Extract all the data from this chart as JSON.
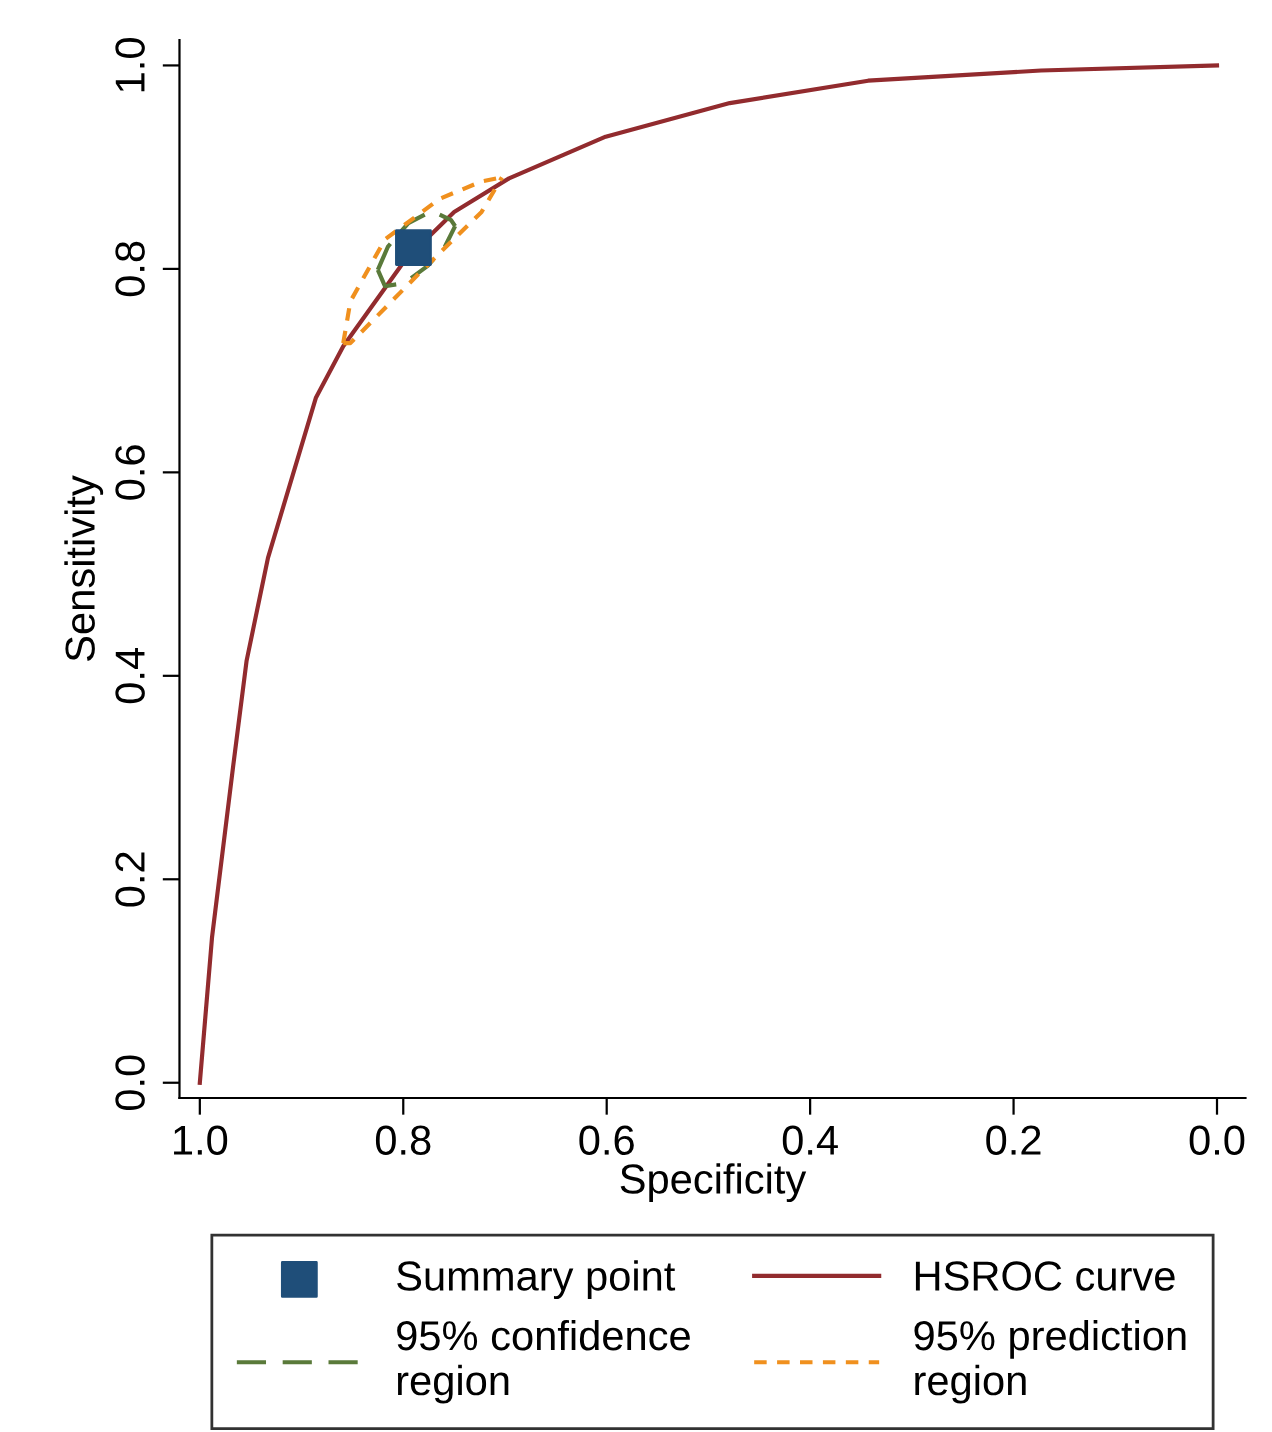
{
  "chart_data": {
    "type": "line",
    "xlabel": "Specificity",
    "ylabel": "Sensitivity",
    "xlim": [
      1.02,
      -0.028
    ],
    "ylim": [
      -0.015,
      1.025
    ],
    "xticks": [
      {
        "value": 1.0,
        "label": "1.0"
      },
      {
        "value": 0.8,
        "label": "0.8"
      },
      {
        "value": 0.6,
        "label": "0.6"
      },
      {
        "value": 0.4,
        "label": "0.4"
      },
      {
        "value": 0.2,
        "label": "0.2"
      },
      {
        "value": 0.0,
        "label": "0.0"
      }
    ],
    "yticks": [
      {
        "value": 0.0,
        "label": "0.0"
      },
      {
        "value": 0.2,
        "label": "0.2"
      },
      {
        "value": 0.4,
        "label": "0.4"
      },
      {
        "value": 0.6,
        "label": "0.6"
      },
      {
        "value": 0.8,
        "label": "0.8"
      },
      {
        "value": 1.0,
        "label": "1.0"
      }
    ],
    "grid": false,
    "legend": "bottom",
    "series": [
      {
        "name": "Summary point",
        "type": "scatter",
        "marker": "square",
        "color": "#1f4e79",
        "x": [
          0.79
        ],
        "values": [
          0.821
        ]
      },
      {
        "name": "HSROC curve",
        "line_style": "solid",
        "color": "#922b2e",
        "x": [
          1.0,
          0.988,
          0.967,
          0.954,
          0.933,
          0.886,
          0.859,
          0.798,
          0.75,
          0.696,
          0.601,
          0.479,
          0.343,
          0.173,
          0.0
        ],
        "values": [
          0.0,
          0.143,
          0.313,
          0.415,
          0.516,
          0.673,
          0.724,
          0.809,
          0.856,
          0.889,
          0.93,
          0.963,
          0.985,
          0.995,
          1.0
        ]
      },
      {
        "name": "95% confidence\nregion",
        "line_style": "dashed",
        "color": "#5a7a3a",
        "x": [
          0.825,
          0.815,
          0.795,
          0.772,
          0.753,
          0.749
        ],
        "values": [
          0.799,
          0.822,
          0.845,
          0.857,
          0.848,
          0.842
        ]
      },
      {
        "name": "95% prediction\nregion",
        "line_style": "dotted",
        "color": "#f0901e",
        "x": [
          0.859,
          0.852,
          0.818,
          0.764,
          0.723,
          0.703
        ],
        "values": [
          0.727,
          0.768,
          0.829,
          0.869,
          0.886,
          0.89
        ]
      },
      {
        "line_style": "dashed",
        "color": "#5a7a3a",
        "x": [
          0.825,
          0.818,
          0.799,
          0.776,
          0.759,
          0.749
        ],
        "values": [
          0.799,
          0.783,
          0.786,
          0.803,
          0.822,
          0.842
        ]
      },
      {
        "line_style": "dotted",
        "color": "#f0901e",
        "x": [
          0.859,
          0.852,
          0.778,
          0.723,
          0.703
        ],
        "values": [
          0.727,
          0.727,
          0.802,
          0.856,
          0.89
        ]
      }
    ]
  }
}
